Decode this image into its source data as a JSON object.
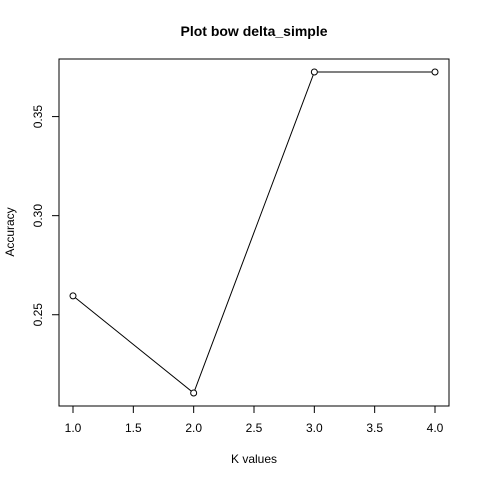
{
  "chart_data": {
    "type": "line",
    "title": "Plot bow delta_simple",
    "xlabel": "K values",
    "ylabel": "Accuracy",
    "x": [
      1,
      2,
      3,
      4
    ],
    "values": [
      0.2595,
      0.2105,
      0.3725,
      0.3725
    ],
    "xlim": [
      1,
      4
    ],
    "ylim": [
      0.2105,
      0.3725
    ],
    "x_ticks": [
      1.0,
      1.5,
      2.0,
      2.5,
      3.0,
      3.5,
      4.0
    ],
    "x_tick_labels": [
      "1.0",
      "1.5",
      "2.0",
      "2.5",
      "3.0",
      "3.5",
      "4.0"
    ],
    "y_ticks": [
      0.25,
      0.3,
      0.35
    ],
    "y_tick_labels": [
      "0.25",
      "0.30",
      "0.35"
    ],
    "grid": false,
    "marker": "open-circle",
    "line_color": "#000000"
  }
}
